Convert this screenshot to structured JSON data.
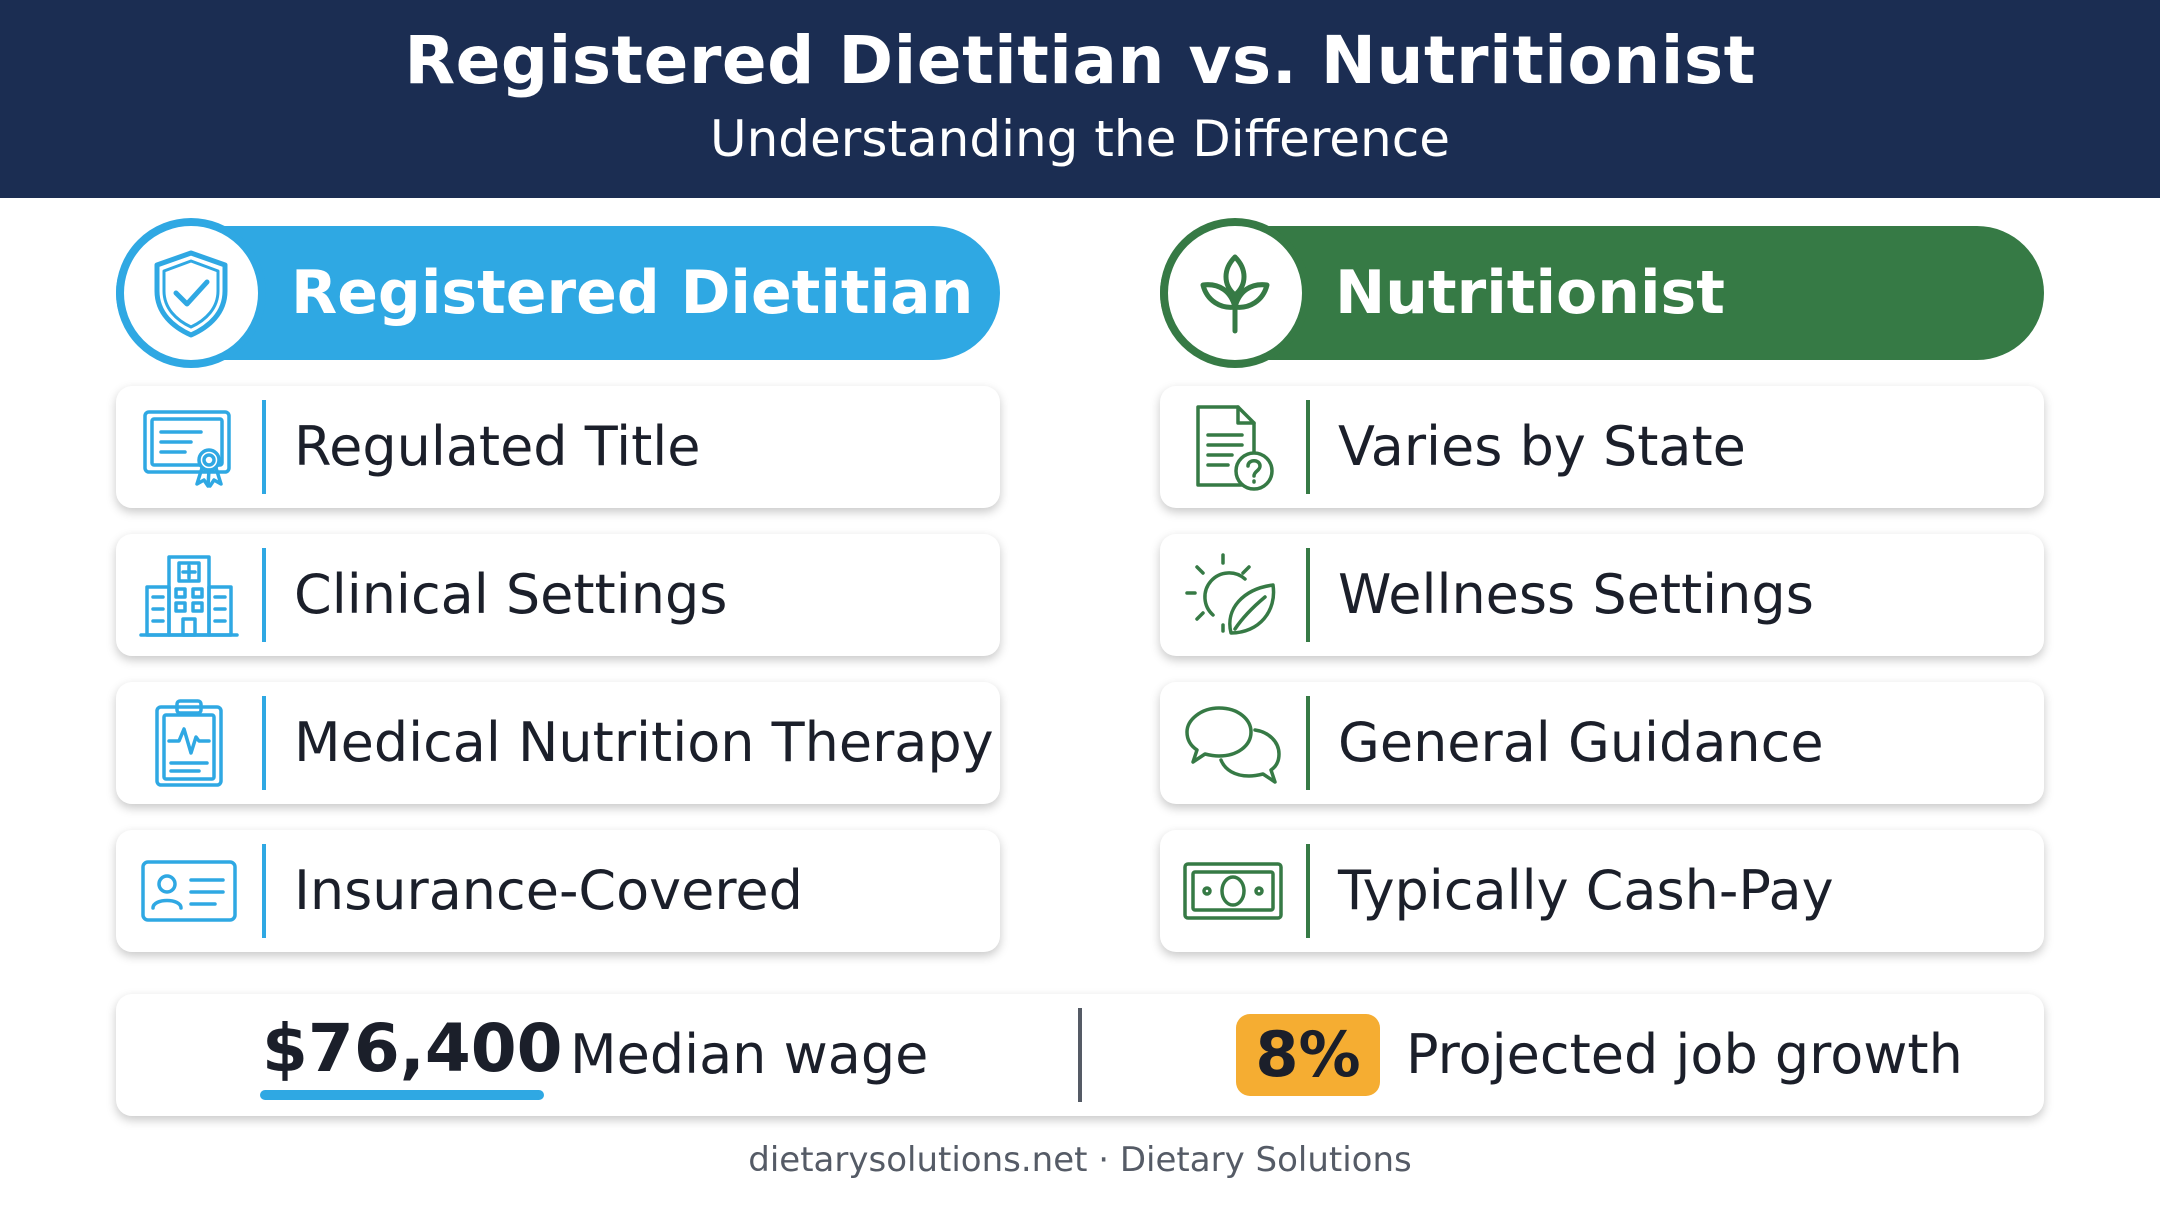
{
  "header": {
    "title": "Registered Dietitian vs. Nutritionist",
    "subtitle": "Understanding the Difference"
  },
  "colors": {
    "header_bg": "#1b2d52",
    "dietitian_accent": "#2fa8e3",
    "nutritionist_accent": "#367a45",
    "growth_badge": "#f5ad32"
  },
  "dietitian": {
    "heading": "Registered Dietitian",
    "badge_icon": "shield-check-icon",
    "items": [
      {
        "label": "Regulated Title",
        "icon": "certificate-icon"
      },
      {
        "label": "Clinical Settings",
        "icon": "hospital-icon"
      },
      {
        "label": "Medical Nutrition Therapy",
        "icon": "clipboard-heartbeat-icon"
      },
      {
        "label": "Insurance-Covered",
        "icon": "id-card-icon"
      }
    ]
  },
  "nutritionist": {
    "heading": "Nutritionist",
    "badge_icon": "sprout-icon",
    "items": [
      {
        "label": "Varies by State",
        "icon": "document-question-icon"
      },
      {
        "label": "Wellness Settings",
        "icon": "sun-leaf-icon"
      },
      {
        "label": "General Guidance",
        "icon": "chat-bubbles-icon"
      },
      {
        "label": "Typically Cash-Pay",
        "icon": "cash-icon"
      }
    ]
  },
  "stats": {
    "wage_value": "$76,400",
    "wage_label": "Median wage",
    "growth_value": "8%",
    "growth_label": "Projected job growth"
  },
  "footer": {
    "text": "dietarysolutions.net · Dietary Solutions"
  }
}
